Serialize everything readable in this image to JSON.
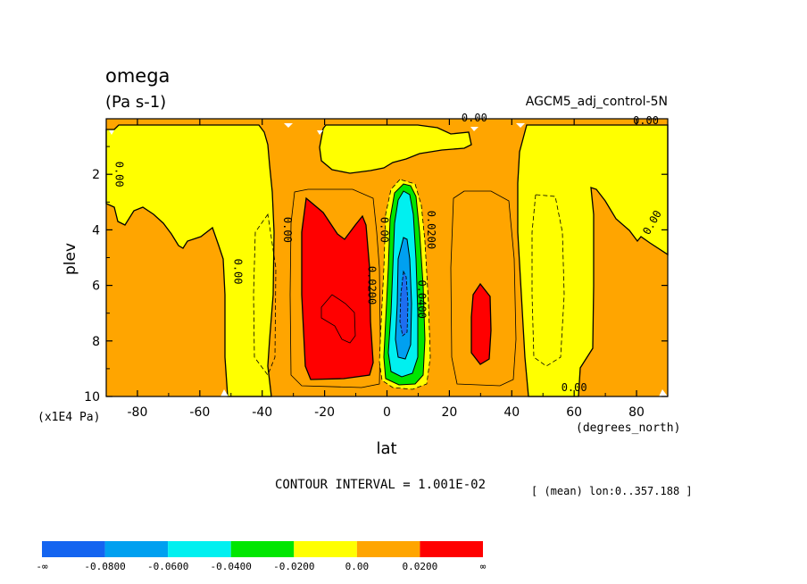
{
  "chart_data": {
    "type": "contour",
    "variable": "omega",
    "units": "(Pa s-1)",
    "dataset": "AGCM5_adj_control-5N",
    "xlabel": "lat",
    "xunits": "(degrees_north)",
    "ylabel": "plev",
    "yunits": "(x1E4 Pa)",
    "xlim": [
      -90,
      90
    ],
    "ylim": [
      0.0,
      10.0
    ],
    "x_ticks": [
      -80,
      -60,
      -40,
      -20,
      0,
      20,
      40,
      60,
      80
    ],
    "x_tick_labels": [
      "-80",
      "-60",
      "-40",
      "-20",
      "0",
      "20",
      "40",
      "60",
      "80"
    ],
    "y_ticks": [
      2,
      4,
      6,
      8,
      10
    ],
    "y_tick_labels": [
      "2",
      "4",
      "6",
      "8",
      "10"
    ],
    "contour_interval_text": "CONTOUR INTERVAL = 1.001E-02",
    "mean_text": "[ (mean) lon:0..357.188 ]",
    "contour_labels": [
      {
        "text": "0.00",
        "lat": 83,
        "plev": 0.2
      },
      {
        "text": "0.00",
        "lat": 28,
        "plev": 0.1
      },
      {
        "text": "0.00",
        "lat": 60,
        "plev": 9.8
      },
      {
        "text": "0.00",
        "lat": -87,
        "plev": 2.0
      },
      {
        "text": "0.00",
        "lat": 86,
        "plev": 3.8
      },
      {
        "text": "0.00",
        "lat": -49,
        "plev": 5.5
      },
      {
        "text": "0.00",
        "lat": -33,
        "plev": 4.0
      },
      {
        "text": "0.00",
        "lat": -2,
        "plev": 4.0
      },
      {
        "text": "0.0200",
        "lat": -6,
        "plev": 6.0
      },
      {
        "text": "0.0200",
        "lat": 13,
        "plev": 4.0
      },
      {
        "text": "0.0400",
        "lat": 10,
        "plev": 6.5
      }
    ],
    "colorbar": {
      "levels": [
        "-∞",
        "-0.0800",
        "-0.0600",
        "-0.0400",
        "-0.0200",
        "0.00",
        "0.0200",
        "∞"
      ],
      "colors": [
        "#1464f0",
        "#00a0f0",
        "#00f0f0",
        "#00e600",
        "#ffff00",
        "#ffa500",
        "#ff0000"
      ]
    },
    "regions_colors": {
      "strong_negative": "#1e6ef0",
      "negative_mid": "#00a0f0",
      "negative_low": "#00f0f0",
      "green": "#00e600",
      "yellow": "#ffff00",
      "orange": "#ffa500",
      "red": "#ff0000"
    }
  }
}
